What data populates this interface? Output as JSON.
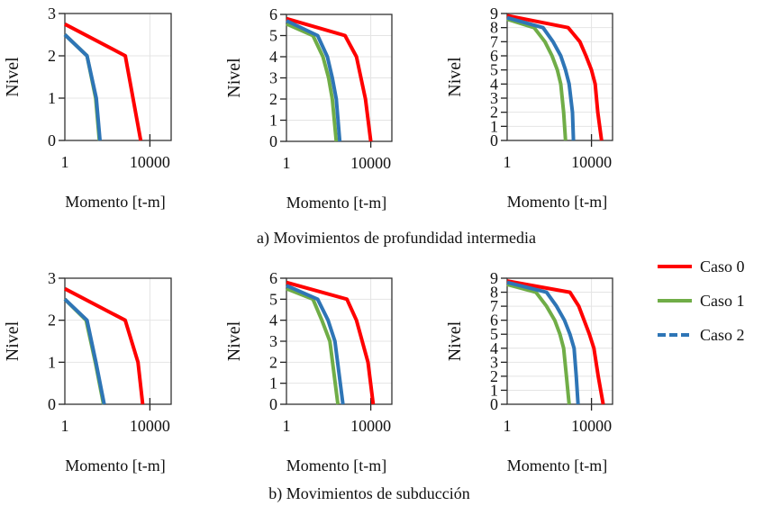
{
  "legend": [
    {
      "name": "Caso 0",
      "color": "#ff0000",
      "dash": false
    },
    {
      "name": "Caso 1",
      "color": "#70ad47",
      "dash": false
    },
    {
      "name": "Caso 2",
      "color": "#2e75b6",
      "dash": true
    }
  ],
  "captions": {
    "a": "a) Movimientos de profundidad intermedia",
    "b": "b) Movimientos de subducción"
  },
  "chart_data": [
    {
      "type": "line",
      "group": "a",
      "xlabel": "Momento [t-m]",
      "ylabel": "Nivel",
      "xscale": "log",
      "xlim": [
        1,
        100000
      ],
      "ylim": [
        0,
        3
      ],
      "xticks": [
        "1",
        "10000"
      ],
      "yticks": [
        "0",
        "1",
        "2",
        "3"
      ],
      "grid": true,
      "series": [
        {
          "name": "Caso 0",
          "points": [
            [
              1,
              2.75
            ],
            [
              700,
              2
            ],
            [
              3700,
              0
            ]
          ]
        },
        {
          "name": "Caso 1",
          "points": [
            [
              1,
              2.5
            ],
            [
              11,
              2
            ],
            [
              28,
              1
            ],
            [
              42,
              0
            ]
          ]
        },
        {
          "name": "Caso 2",
          "points": [
            [
              1,
              2.5
            ],
            [
              11,
              2
            ],
            [
              30,
              1
            ],
            [
              45,
              0
            ]
          ]
        }
      ]
    },
    {
      "type": "line",
      "group": "a",
      "xlabel": "Momento [t-m]",
      "ylabel": "Nivel",
      "xscale": "log",
      "xlim": [
        1,
        100000
      ],
      "ylim": [
        0,
        6
      ],
      "xticks": [
        "1",
        "10000"
      ],
      "yticks": [
        "0",
        "1",
        "2",
        "3",
        "4",
        "5",
        "6"
      ],
      "grid": true,
      "series": [
        {
          "name": "Caso 0",
          "points": [
            [
              1,
              5.8
            ],
            [
              600,
              5
            ],
            [
              2100,
              4
            ],
            [
              5600,
              2
            ],
            [
              10000,
              0
            ]
          ]
        },
        {
          "name": "Caso 1",
          "points": [
            [
              1,
              5.55
            ],
            [
              18,
              5
            ],
            [
              54,
              4
            ],
            [
              100,
              3
            ],
            [
              150,
              2
            ],
            [
              230,
              0
            ]
          ]
        },
        {
          "name": "Caso 2",
          "points": [
            [
              1,
              5.7
            ],
            [
              30,
              5
            ],
            [
              87,
              4
            ],
            [
              150,
              3
            ],
            [
              230,
              2
            ],
            [
              340,
              0
            ]
          ]
        }
      ]
    },
    {
      "type": "line",
      "group": "a",
      "xlabel": "Momento [t-m]",
      "ylabel": "Nivel",
      "xscale": "log",
      "xlim": [
        1,
        100000
      ],
      "ylim": [
        0,
        9
      ],
      "xticks": [
        "1",
        "10000"
      ],
      "yticks": [
        "0",
        "1",
        "2",
        "3",
        "4",
        "5",
        "6",
        "7",
        "8",
        "9"
      ],
      "grid": true,
      "series": [
        {
          "name": "Caso 0",
          "points": [
            [
              1,
              8.85
            ],
            [
              780,
              8
            ],
            [
              2800,
              7
            ],
            [
              5500,
              6
            ],
            [
              10000,
              5
            ],
            [
              15000,
              4
            ],
            [
              20000,
              2
            ],
            [
              30000,
              0
            ]
          ]
        },
        {
          "name": "Caso 1",
          "points": [
            [
              1,
              8.6
            ],
            [
              19,
              8
            ],
            [
              62,
              7
            ],
            [
              135,
              6
            ],
            [
              240,
              5
            ],
            [
              350,
              4
            ],
            [
              480,
              2
            ],
            [
              590,
              0
            ]
          ]
        },
        {
          "name": "Caso 2",
          "points": [
            [
              1,
              8.7
            ],
            [
              50,
              8
            ],
            [
              150,
              7
            ],
            [
              350,
              6
            ],
            [
              590,
              5
            ],
            [
              870,
              4
            ],
            [
              1260,
              2
            ],
            [
              1400,
              0
            ]
          ]
        }
      ]
    },
    {
      "type": "line",
      "group": "b",
      "xlabel": "Momento [t-m]",
      "ylabel": "Nivel",
      "xscale": "log",
      "xlim": [
        1,
        100000
      ],
      "ylim": [
        0,
        3
      ],
      "xticks": [
        "1",
        "10000"
      ],
      "yticks": [
        "0",
        "1",
        "2",
        "3"
      ],
      "grid": true,
      "series": [
        {
          "name": "Caso 0",
          "points": [
            [
              1,
              2.75
            ],
            [
              690,
              2
            ],
            [
              2750,
              1
            ],
            [
              4600,
              0
            ]
          ]
        },
        {
          "name": "Caso 1",
          "points": [
            [
              1,
              2.5
            ],
            [
              10,
              2
            ],
            [
              27,
              1
            ],
            [
              66,
              0
            ]
          ]
        },
        {
          "name": "Caso 2",
          "points": [
            [
              1,
              2.5
            ],
            [
              11,
              2
            ],
            [
              29,
              1
            ],
            [
              71,
              0
            ]
          ]
        }
      ]
    },
    {
      "type": "line",
      "group": "b",
      "xlabel": "Momento [t-m]",
      "ylabel": "Nivel",
      "xscale": "log",
      "xlim": [
        1,
        100000
      ],
      "ylim": [
        0,
        6
      ],
      "xticks": [
        "1",
        "10000"
      ],
      "yticks": [
        "0",
        "1",
        "2",
        "3",
        "4",
        "5",
        "6"
      ],
      "grid": true,
      "series": [
        {
          "name": "Caso 0",
          "points": [
            [
              1,
              5.8
            ],
            [
              740,
              5
            ],
            [
              2100,
              4
            ],
            [
              7400,
              2
            ],
            [
              13000,
              0
            ]
          ]
        },
        {
          "name": "Caso 1",
          "points": [
            [
              1,
              5.5
            ],
            [
              18,
              5
            ],
            [
              48,
              4
            ],
            [
              115,
              3
            ],
            [
              275,
              0
            ]
          ]
        },
        {
          "name": "Caso 2",
          "points": [
            [
              1,
              5.65
            ],
            [
              30,
              5
            ],
            [
              94,
              4
            ],
            [
              200,
              3
            ],
            [
              480,
              0
            ]
          ]
        }
      ]
    },
    {
      "type": "line",
      "group": "b",
      "xlabel": "Momento [t-m]",
      "ylabel": "Nivel",
      "xscale": "log",
      "xlim": [
        1,
        100000
      ],
      "ylim": [
        0,
        9
      ],
      "xticks": [
        "1",
        "10000"
      ],
      "yticks": [
        "0",
        "1",
        "2",
        "3",
        "4",
        "5",
        "6",
        "7",
        "8",
        "9"
      ],
      "grid": true,
      "series": [
        {
          "name": "Caso 0",
          "points": [
            [
              1,
              8.8
            ],
            [
              950,
              8
            ],
            [
              2500,
              7
            ],
            [
              8000,
              5
            ],
            [
              13000,
              4
            ],
            [
              21000,
              2
            ],
            [
              36000,
              0
            ]
          ]
        },
        {
          "name": "Caso 1",
          "points": [
            [
              1,
              8.55
            ],
            [
              23,
              8
            ],
            [
              74,
              7
            ],
            [
              180,
              6
            ],
            [
              320,
              5
            ],
            [
              480,
              4
            ],
            [
              650,
              2
            ],
            [
              870,
              0
            ]
          ]
        },
        {
          "name": "Caso 2",
          "points": [
            [
              1,
              8.7
            ],
            [
              74,
              8
            ],
            [
              220,
              7
            ],
            [
              520,
              6
            ],
            [
              950,
              5
            ],
            [
              1500,
              4
            ],
            [
              1900,
              2
            ],
            [
              2300,
              0
            ]
          ]
        }
      ]
    }
  ]
}
